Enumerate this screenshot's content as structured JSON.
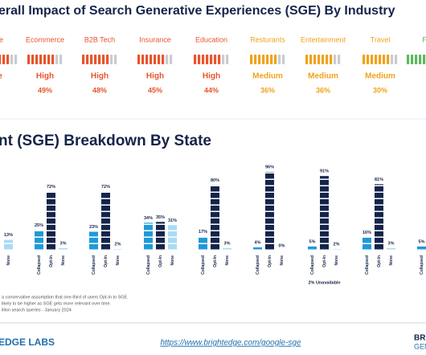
{
  "header": {
    "title": "erall Impact of Search Generative Experiences (SGE) By Industry"
  },
  "industries": [
    {
      "name": "re",
      "level": "e",
      "color": "#e8552d"
    },
    {
      "name": "Ecommerce",
      "level": "High",
      "percent": "49%",
      "color": "#e8552d"
    },
    {
      "name": "B2B Tech",
      "level": "High",
      "percent": "48%",
      "color": "#e8552d"
    },
    {
      "name": "Insurance",
      "level": "High",
      "percent": "45%",
      "color": "#e8552d"
    },
    {
      "name": "Education",
      "level": "High",
      "percent": "44%",
      "color": "#e8552d"
    },
    {
      "name": "Resturants",
      "level": "Medium",
      "percent": "36%",
      "color": "#f0a31c"
    },
    {
      "name": "Entertainment",
      "level": "Medium",
      "percent": "36%",
      "color": "#f0a31c"
    },
    {
      "name": "Travel",
      "level": "Medium",
      "percent": "30%",
      "color": "#f0a31c"
    },
    {
      "name": "F",
      "color": "#5cb85c"
    }
  ],
  "chart_data": {
    "type": "bar",
    "title": "nt (SGE) Breakdown By State",
    "categories": [
      null,
      null,
      null,
      null,
      null,
      null,
      null,
      null,
      null
    ],
    "series": [
      {
        "name": "Collapsed",
        "color": "#1f9ad8",
        "values": [
          null,
          25,
          23,
          34,
          17,
          4,
          5,
          16,
          5
        ],
        "value_labels": [
          null,
          "25%",
          "23%",
          "34%",
          "17%",
          "4%",
          "5%",
          "16%",
          "5%"
        ]
      },
      {
        "name": "Opt-In",
        "color": "#15244a",
        "values": [
          null,
          72,
          72,
          35,
          80,
          96,
          91,
          81,
          null
        ],
        "value_labels": [
          null,
          "72%",
          "72%",
          "35%",
          "80%",
          "96%",
          "91%",
          "81%",
          null
        ]
      },
      {
        "name": "None",
        "color": "#a8dbf3",
        "values": [
          13,
          3,
          2,
          31,
          3,
          0,
          2,
          3,
          null
        ],
        "value_labels": [
          "13%",
          "3%",
          "2%",
          "31%",
          "3%",
          "0%",
          "2%",
          "3%",
          null
        ]
      }
    ],
    "annotations": [
      {
        "category": 6,
        "text": "2% Unavailable"
      }
    ]
  },
  "footnotes": [
    "a conservative assumption that one-third of users Opt-In to SGE.",
    "likely to be higher as SGE gets more relevant over time.",
    "illion search queries - January 2024"
  ],
  "footer": {
    "brand": "EDGE LABS",
    "url": "https://www.brightedge.com/google-sge",
    "right_top": "BRI",
    "right_bottom": "GEN"
  }
}
